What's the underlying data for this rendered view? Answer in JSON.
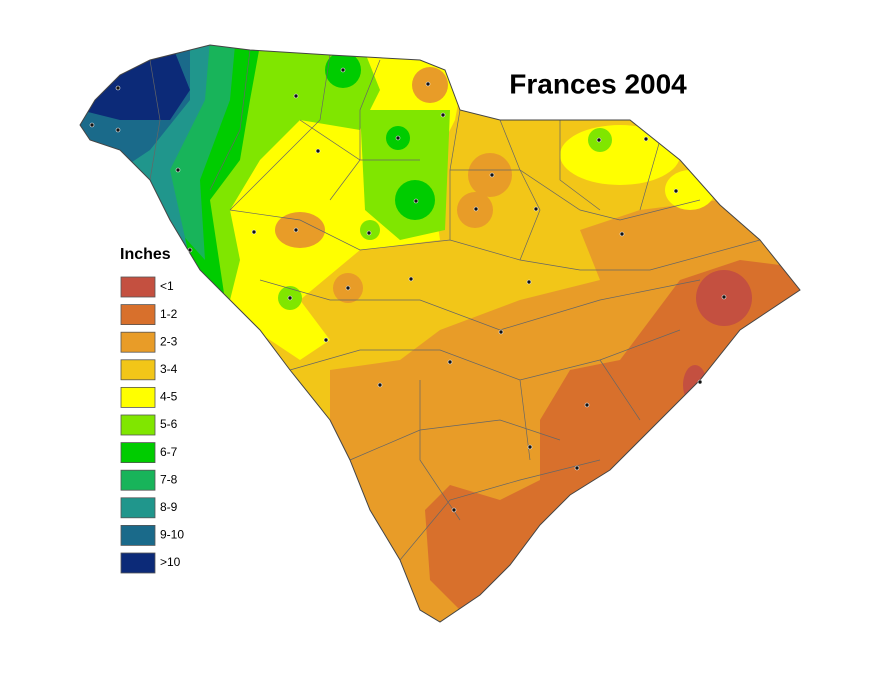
{
  "title": "Frances 2004",
  "legend": {
    "title": "Inches",
    "items": [
      {
        "label": "<1",
        "color": "#c45040"
      },
      {
        "label": "1-2",
        "color": "#d8702c"
      },
      {
        "label": "2-3",
        "color": "#e89c28"
      },
      {
        "label": "3-4",
        "color": "#f2c618"
      },
      {
        "label": "4-5",
        "color": "#ffff00"
      },
      {
        "label": "5-6",
        "color": "#80e600"
      },
      {
        "label": "6-7",
        "color": "#00cc00"
      },
      {
        "label": "7-8",
        "color": "#18b45a"
      },
      {
        "label": "8-9",
        "color": "#20968c"
      },
      {
        "label": "9-10",
        "color": "#1a6a8a"
      },
      {
        "label": ">10",
        "color": "#0c2a78"
      }
    ]
  }
}
